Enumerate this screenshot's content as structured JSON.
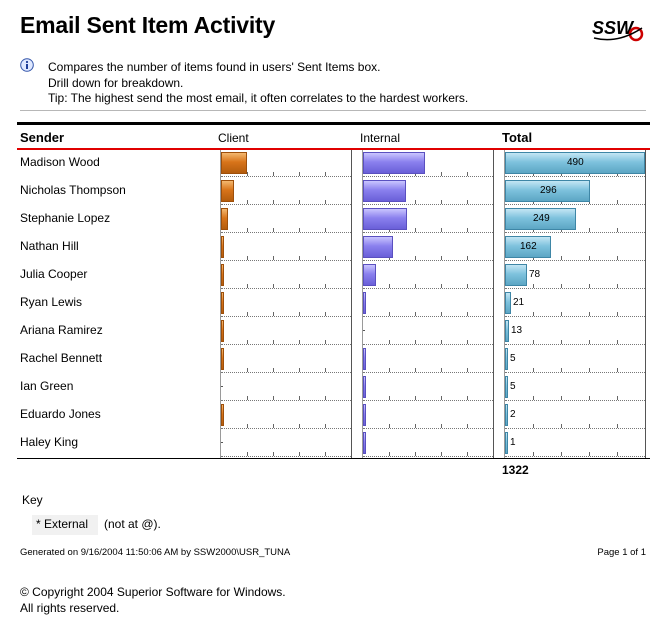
{
  "header": {
    "title": "Email Sent Item Activity",
    "logo_text": "SSW",
    "description_lines": [
      "Compares the number of items found in users' Sent Items box.",
      "Drill down for breakdown.",
      "Tip: The highest send the most email, it often correlates to the hardest workers."
    ]
  },
  "table": {
    "columns": {
      "sender": "Sender",
      "client": "Client",
      "internal": "Internal",
      "total": "Total"
    },
    "rows": [
      {
        "name": "Madison Wood",
        "client_frac": 0.2,
        "internal_frac": 0.48,
        "total": "490"
      },
      {
        "name": "Nicholas Thompson",
        "client_frac": 0.1,
        "internal_frac": 0.33,
        "total": "296"
      },
      {
        "name": "Stephanie Lopez",
        "client_frac": 0.05,
        "internal_frac": 0.34,
        "total": "249"
      },
      {
        "name": "Nathan Hill",
        "client_frac": 0.015,
        "internal_frac": 0.23,
        "total": "162"
      },
      {
        "name": "Julia Cooper",
        "client_frac": 0.02,
        "internal_frac": 0.1,
        "total": "78"
      },
      {
        "name": "Ryan Lewis",
        "client_frac": 0.02,
        "internal_frac": 0.015,
        "total": "21"
      },
      {
        "name": "Ariana Ramirez",
        "client_frac": 0.015,
        "internal_frac": 0,
        "total": "13"
      },
      {
        "name": "Rachel Bennett",
        "client_frac": 0.015,
        "internal_frac": 0.012,
        "total": "5"
      },
      {
        "name": "Ian Green",
        "client_frac": 0,
        "internal_frac": 0.012,
        "total": "5"
      },
      {
        "name": "Eduardo Jones",
        "client_frac": 0.015,
        "internal_frac": 0.012,
        "total": "2"
      },
      {
        "name": "Haley King",
        "client_frac": 0,
        "internal_frac": 0.012,
        "total": "1"
      }
    ],
    "total_sum": "1322"
  },
  "key": {
    "title": "Key",
    "item": "* External",
    "desc": "(not at @)."
  },
  "footer": {
    "generated": "Generated on 9/16/2004 11:50:06 AM by SSW2000\\USR_TUNA",
    "page": "Page 1 of 1",
    "copyright_line1": "© Copyright 2004 Superior Software for Windows.",
    "copyright_line2": "All rights reserved."
  },
  "colors": {
    "client_bar": "#d8741a",
    "internal_bar": "#8a80ee",
    "total_bar": "#7ec2dd",
    "header_rule": "#e00000"
  }
}
